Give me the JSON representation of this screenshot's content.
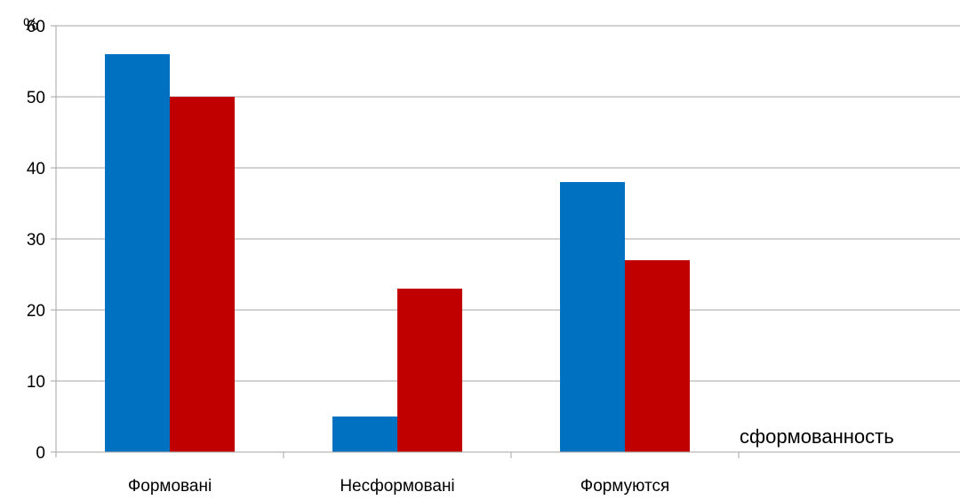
{
  "chart_data": {
    "type": "bar",
    "title": "",
    "xlabel": "сформованность",
    "ylabel": "%",
    "categories": [
      "Формовані",
      "Несформовані",
      "Формуются"
    ],
    "empty_slots": 1,
    "series": [
      {
        "color": "#0070c0",
        "values": [
          56,
          5,
          38
        ]
      },
      {
        "color": "#c00000",
        "values": [
          50,
          23,
          27
        ]
      }
    ],
    "ylim": [
      0,
      60
    ],
    "yticks": [
      "0",
      "10",
      "20",
      "30",
      "40",
      "50",
      "60"
    ],
    "grid": true,
    "legend": "none"
  }
}
